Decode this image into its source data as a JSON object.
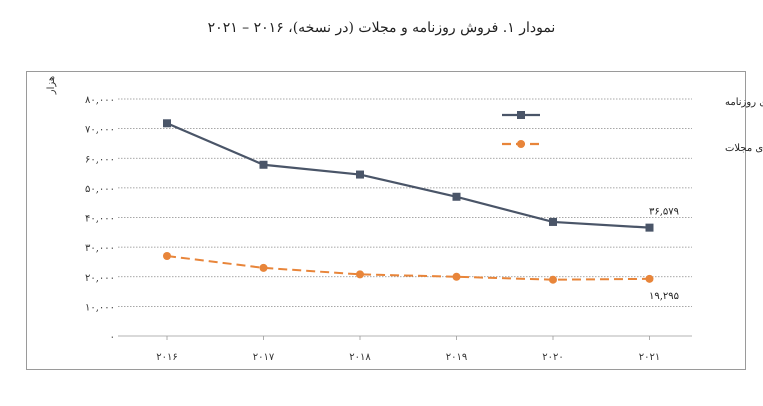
{
  "title": "نمودار ۱. فروش روزنامه و مجلات (در نسخه)، ۲۰۱۶ – ۲۰۲۱",
  "chart_data": {
    "type": "line",
    "title": "نمودار ۱. فروش روزنامه و مجلات (در نسخه)، ۲۰۱۶ – ۲۰۲۱",
    "xlabel": "",
    "ylabel": "هزار",
    "x": [
      "۲۰۱۶",
      "۲۰۱۷",
      "۲۰۱۸",
      "۲۰۱۹",
      "۲۰۲۰",
      "۲۰۲۱"
    ],
    "x_values": [
      2016,
      2017,
      2018,
      2019,
      2020,
      2021
    ],
    "ylim": [
      0,
      80000
    ],
    "yticks": [
      0,
      10000,
      20000,
      30000,
      40000,
      50000,
      60000,
      70000,
      80000
    ],
    "ytick_labels": [
      "۰",
      "۱۰,۰۰۰",
      "۲۰,۰۰۰",
      "۳۰,۰۰۰",
      "۴۰,۰۰۰",
      "۵۰,۰۰۰",
      "۶۰,۰۰۰",
      "۷۰,۰۰۰",
      "۸۰,۰۰۰"
    ],
    "grid": "horizontal dotted",
    "legend_position": "top-right",
    "series": [
      {
        "name": "نسخه‌های روزنامه",
        "values": [
          71800,
          57800,
          54500,
          47000,
          38500,
          36579
        ],
        "color": "#4a5568",
        "marker": "square",
        "style": "solid",
        "end_label": "۳۶,۵۷۹"
      },
      {
        "name": "نسخه‌های مجلات",
        "values": [
          27000,
          23000,
          20800,
          20000,
          19000,
          19295
        ],
        "color": "#e8853a",
        "marker": "circle",
        "style": "dashed",
        "end_label": "۱۹,۲۹۵"
      }
    ]
  }
}
